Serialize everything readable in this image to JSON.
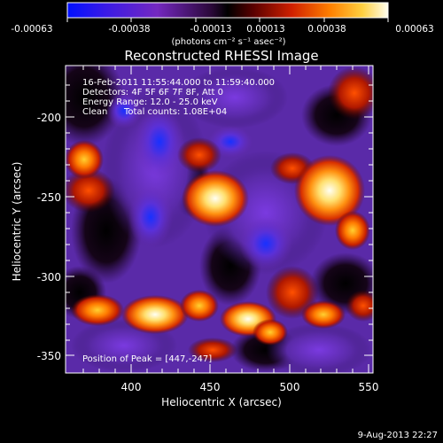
{
  "colorbar": {
    "tick_labels": [
      "-0.00063",
      "-0.00038",
      "-0.00013",
      "0.00013",
      "0.00038",
      "0.00063"
    ],
    "units": "(photons cm⁻² s⁻¹ asec⁻²)"
  },
  "title": "Reconstructed RHESSI Image",
  "annotations": {
    "time_range": "16-Feb-2011 11:55:44.000 to 11:59:40.000",
    "detectors": "Detectors: 4F 5F 6F 7F 8F, Att 0",
    "energy_range": "Energy Range: 12.0 - 25.0 keV",
    "method": "Clean",
    "total_counts": "Total counts: 1.08E+04",
    "peak_position": "Position of Peak = [447,-247]"
  },
  "axes": {
    "x_label": "Heliocentric X (arcsec)",
    "y_label": "Heliocentric Y (arcsec)",
    "x_ticks": [
      "400",
      "450",
      "500",
      "550"
    ],
    "y_ticks": [
      "-200",
      "-250",
      "-300",
      "-350"
    ]
  },
  "footer": {
    "date": "9-Aug-2013 22:27"
  }
}
